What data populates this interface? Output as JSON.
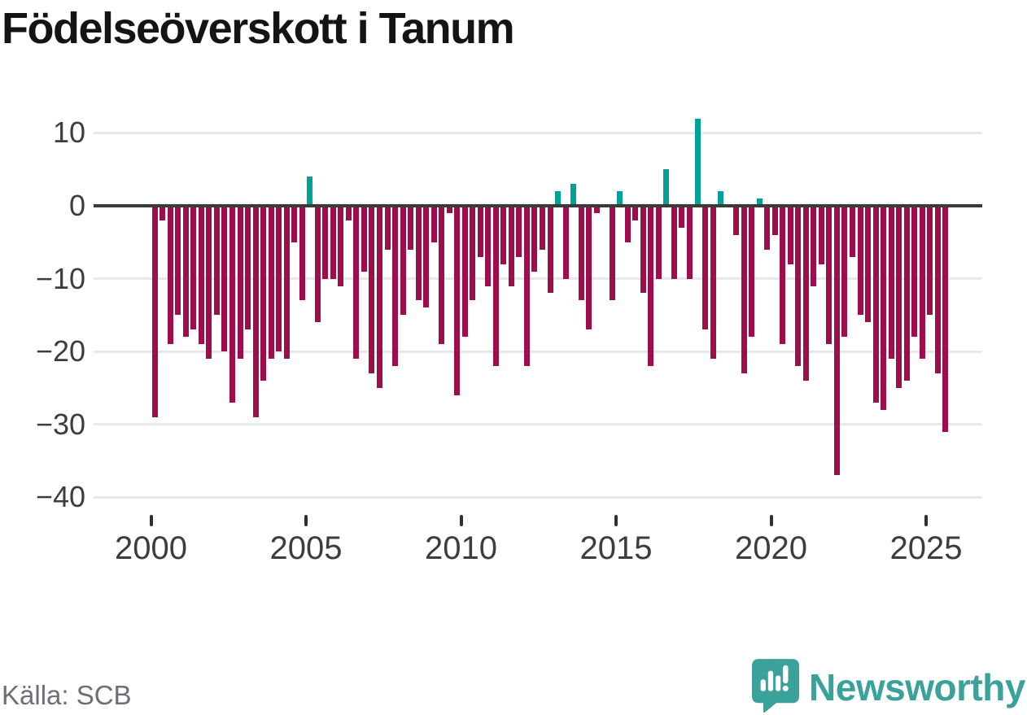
{
  "page": {
    "title": "Födelseöverskott i Tanum"
  },
  "footer": {
    "source": "Källa: SCB",
    "brand_name": "Newsworthy"
  },
  "colors": {
    "positive": "#01A09A",
    "negative": "#9E0E4C",
    "axis_line": "#3B3B3B",
    "grid": "#E8E8E8",
    "axis_text": "#3D3D3D",
    "title_text": "#141414",
    "source_text": "#6E6E78",
    "brand": "#3BA29B"
  },
  "chart_data": {
    "type": "bar",
    "title": "Födelseöverskott i Tanum",
    "x_tick_years": [
      2000,
      2005,
      2010,
      2015,
      2020,
      2025
    ],
    "x_tick_labels": [
      "2000",
      "2005",
      "2010",
      "2015",
      "2020",
      "2025"
    ],
    "y_ticks": [
      10,
      0,
      -10,
      -20,
      -30,
      -40
    ],
    "y_tick_labels": [
      "10",
      "0",
      "−10",
      "−20",
      "−30",
      "−40"
    ],
    "ylim": [
      -44,
      14
    ],
    "grid": true,
    "legend": false,
    "frequency": "quarterly",
    "series_by_year": [
      {
        "year": 2000,
        "values": [
          -29,
          -2,
          -19,
          -15
        ]
      },
      {
        "year": 2001,
        "values": [
          -18,
          -17,
          -19,
          -21
        ]
      },
      {
        "year": 2002,
        "values": [
          -15,
          -20,
          -27,
          -21
        ]
      },
      {
        "year": 2003,
        "values": [
          -17,
          -29,
          -24,
          -21
        ]
      },
      {
        "year": 2004,
        "values": [
          -20,
          -21,
          -5,
          -13
        ]
      },
      {
        "year": 2005,
        "values": [
          4,
          -16,
          -10,
          -10
        ]
      },
      {
        "year": 2006,
        "values": [
          -11,
          -2,
          -21,
          -9
        ]
      },
      {
        "year": 2007,
        "values": [
          -23,
          -25,
          -6,
          -22
        ]
      },
      {
        "year": 2008,
        "values": [
          -15,
          -6,
          -13,
          -14
        ]
      },
      {
        "year": 2009,
        "values": [
          -5,
          -19,
          -1,
          -26
        ]
      },
      {
        "year": 2010,
        "values": [
          -18,
          -13,
          -7,
          -11
        ]
      },
      {
        "year": 2011,
        "values": [
          -22,
          -8,
          -11,
          -7
        ]
      },
      {
        "year": 2012,
        "values": [
          -22,
          -9,
          -6,
          -12
        ]
      },
      {
        "year": 2013,
        "values": [
          2,
          -10,
          3,
          -13
        ]
      },
      {
        "year": 2014,
        "values": [
          -17,
          -1,
          0,
          -13
        ]
      },
      {
        "year": 2015,
        "values": [
          2,
          -5,
          -2,
          -12
        ]
      },
      {
        "year": 2016,
        "values": [
          -22,
          -10,
          5,
          -10
        ]
      },
      {
        "year": 2017,
        "values": [
          -3,
          -10,
          12,
          -17
        ]
      },
      {
        "year": 2018,
        "values": [
          -21,
          2,
          0,
          -4
        ]
      },
      {
        "year": 2019,
        "values": [
          -23,
          -18,
          1,
          -6
        ]
      },
      {
        "year": 2020,
        "values": [
          -4,
          -19,
          -8,
          -22
        ]
      },
      {
        "year": 2021,
        "values": [
          -24,
          -11,
          -8,
          -19
        ]
      },
      {
        "year": 2022,
        "values": [
          -37,
          -18,
          -7,
          -15
        ]
      },
      {
        "year": 2023,
        "values": [
          -16,
          -27,
          -28,
          -21
        ]
      },
      {
        "year": 2024,
        "values": [
          -25,
          -24,
          -18,
          -21
        ]
      },
      {
        "year": 2025,
        "values": [
          -15,
          -23,
          -31
        ]
      }
    ]
  }
}
